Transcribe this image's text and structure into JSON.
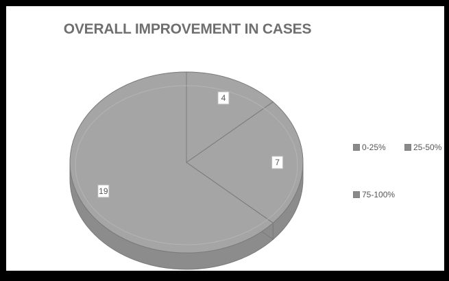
{
  "chart_data": {
    "type": "pie",
    "title": "OVERALL IMPROVEMENT IN CASES",
    "categories": [
      "0-25%",
      "25-50%",
      "75-100%"
    ],
    "values": [
      4,
      7,
      19
    ],
    "legend_position": "right",
    "colors": {
      "slice_top": "#a5a5a5",
      "slice_side": "#8c8c8c",
      "edge": "#7a7a7a",
      "legend_swatch": "#8a8a8a",
      "text": "#555555"
    }
  }
}
